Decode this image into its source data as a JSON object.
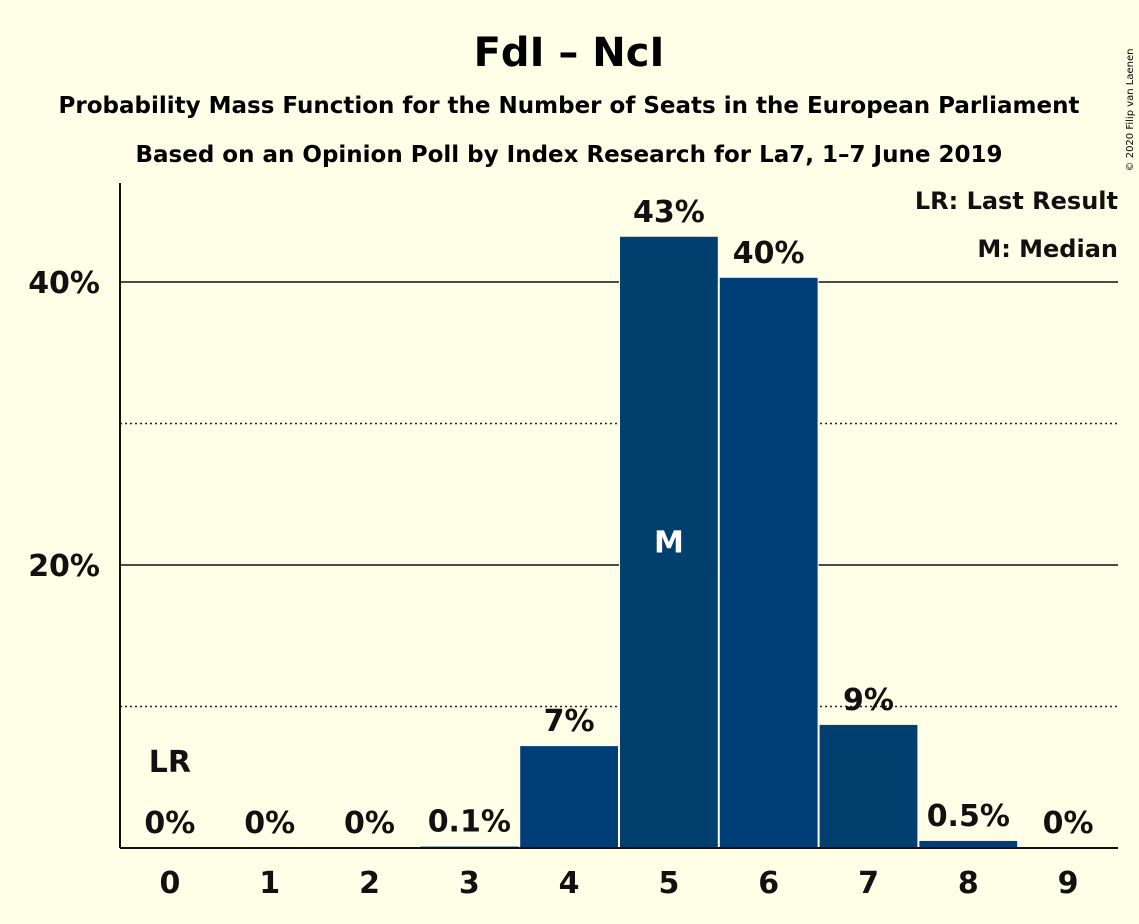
{
  "chart_data": {
    "type": "bar",
    "title": "FdI – NcI",
    "subtitle": "Probability Mass Function for the Number of Seats in the European Parliament",
    "subtitle2": "Based on an Opinion Poll by Index Research for La7, 1–7 June 2019",
    "categories": [
      "0",
      "1",
      "2",
      "3",
      "4",
      "5",
      "6",
      "7",
      "8",
      "9"
    ],
    "values": [
      0,
      0,
      0,
      0.1,
      7.2,
      43.2,
      40.3,
      8.7,
      0.5,
      0
    ],
    "value_labels": [
      "0%",
      "0%",
      "0%",
      "0.1%",
      "7%",
      "43%",
      "40%",
      "9%",
      "0.5%",
      "0%"
    ],
    "ylim": [
      0,
      47
    ],
    "yticks": [
      {
        "value": 20,
        "label": "20%"
      },
      {
        "value": 40,
        "label": "40%"
      }
    ],
    "minor_gridlines": [
      10,
      30
    ],
    "last_result_index": 0,
    "last_result_marker": "LR",
    "median_index": 5,
    "median_marker": "M",
    "legend": [
      "LR: Last Result",
      "M: Median"
    ],
    "legend_position": "top-right",
    "bar_colors": [
      "#003E78",
      "#003F6E"
    ],
    "copyright": "© 2020 Filip van Laenen"
  }
}
